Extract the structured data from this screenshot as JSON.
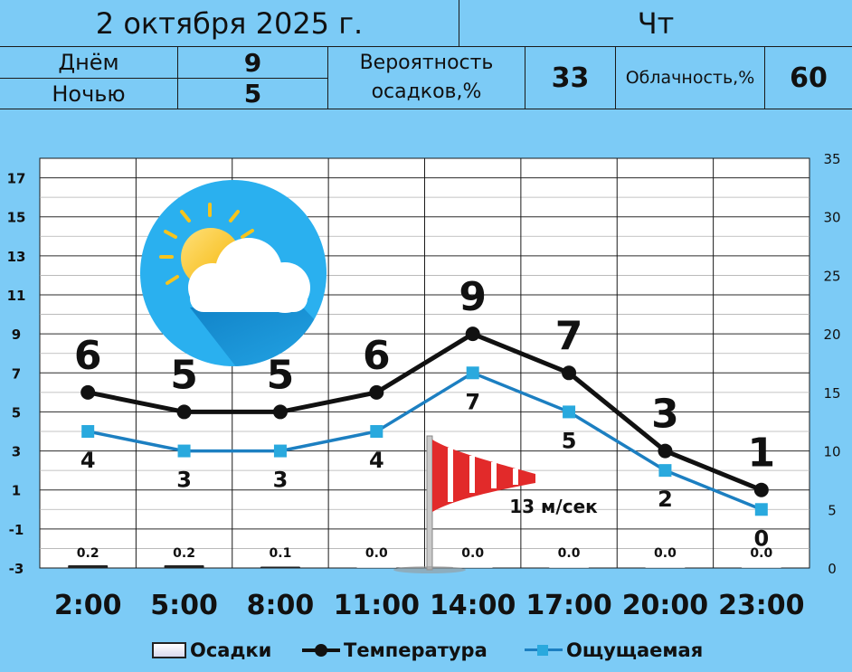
{
  "header": {
    "date": "2 октября 2025 г.",
    "weekday": "Чт",
    "day_label": "Днём",
    "day_value": "9",
    "night_label": "Ночью",
    "night_value": "5",
    "precip_label_1": "Вероятность",
    "precip_label_2": "осадков,%",
    "precip_value": "33",
    "cloud_label": "Облачность,%",
    "cloud_value": "60"
  },
  "wind_label": "13 м/сек",
  "colors": {
    "background": "#7ccbf6",
    "temperature": "#111111",
    "feels_like": "#1c7fc1",
    "feels_like_marker": "#29a9de",
    "gridline": "#1a1a1a"
  },
  "icons": [
    "partly-cloudy-icon",
    "windsock-icon"
  ],
  "chart_data": {
    "type": "line",
    "categories": [
      "2:00",
      "5:00",
      "8:00",
      "11:00",
      "14:00",
      "17:00",
      "20:00",
      "23:00"
    ],
    "series": [
      {
        "name": "Температура",
        "values": [
          6,
          5,
          5,
          6,
          9,
          7,
          3,
          1
        ],
        "labels": [
          "6",
          "5",
          "5",
          "6",
          "9",
          "7",
          "3",
          "1"
        ]
      },
      {
        "name": "Ощущаемая",
        "values": [
          4,
          3,
          3,
          4,
          7,
          5,
          2,
          0
        ],
        "labels": [
          "4",
          "3",
          "3",
          "4",
          "7",
          "5",
          "2",
          "0"
        ]
      },
      {
        "name": "Осадки",
        "values": [
          0.2,
          0.2,
          0.1,
          0.0,
          0.0,
          0.0,
          0.0,
          0.0
        ],
        "labels": [
          "0.2",
          "0.2",
          "0.1",
          "0.0",
          "0.0",
          "0.0",
          "0.0",
          "0.0"
        ]
      }
    ],
    "y_left_ticks": [
      "17",
      "15",
      "13",
      "11",
      "9",
      "7",
      "5",
      "3",
      "1",
      "-1",
      "-3"
    ],
    "y_left_range": [
      -3,
      18
    ],
    "y_right_ticks": [
      "35",
      "30",
      "25",
      "20",
      "15",
      "10",
      "5",
      "0"
    ],
    "y_right_range": [
      0,
      35
    ],
    "grid": true,
    "legend_position": "bottom"
  }
}
